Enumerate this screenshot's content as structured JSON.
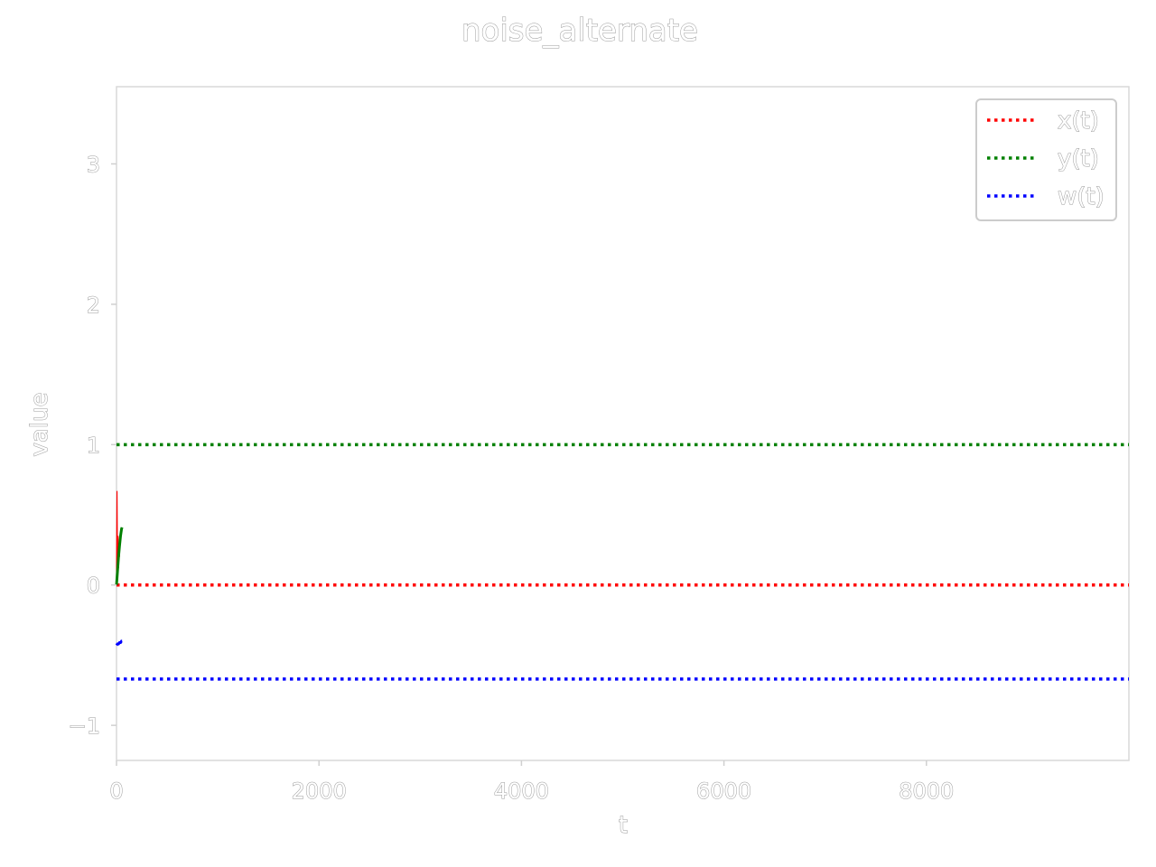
{
  "chart_data": {
    "type": "line",
    "title": "noise_alternate",
    "xlabel": "t",
    "ylabel": "value",
    "xlim": [
      0,
      10000
    ],
    "ylim": [
      -1.25,
      3.55
    ],
    "xticks": [
      0,
      2000,
      4000,
      6000,
      8000
    ],
    "yticks": [
      -1,
      0,
      1,
      2,
      3
    ],
    "xtick_labels": [
      "0",
      "2000",
      "4000",
      "6000",
      "8000"
    ],
    "ytick_labels": [
      "−1",
      "0",
      "1",
      "2",
      "3"
    ],
    "grid": false,
    "legend": {
      "placement": "top-right",
      "entries": [
        "x(t)",
        "y(t)",
        "w(t)"
      ]
    },
    "series": [
      {
        "name": "x(t)",
        "color": "#ff0000",
        "style": "solid",
        "x": [
          0,
          5,
          10,
          15,
          20,
          25,
          30
        ],
        "y": [
          0.0,
          0.67,
          0.05,
          0.35,
          0.12,
          0.3,
          0.2
        ]
      },
      {
        "name": "y(t)",
        "color": "#008000",
        "style": "solid",
        "x": [
          0,
          10,
          20,
          30,
          40,
          50,
          55
        ],
        "y": [
          0.0,
          0.1,
          0.2,
          0.28,
          0.35,
          0.4,
          0.41
        ]
      },
      {
        "name": "w(t)",
        "color": "#0000ff",
        "style": "solid",
        "x": [
          0,
          10,
          20,
          30,
          40,
          50,
          55
        ],
        "y": [
          -0.43,
          -0.42,
          -0.42,
          -0.41,
          -0.41,
          -0.4,
          -0.4
        ]
      }
    ],
    "reference_lines": [
      {
        "series": "x(t)",
        "y": 0.0,
        "color": "#ff0000",
        "style": "dotted"
      },
      {
        "series": "y(t)",
        "y": 1.0,
        "color": "#008000",
        "style": "dotted"
      },
      {
        "series": "w(t)",
        "y": -0.67,
        "color": "#0000ff",
        "style": "dotted"
      }
    ]
  }
}
